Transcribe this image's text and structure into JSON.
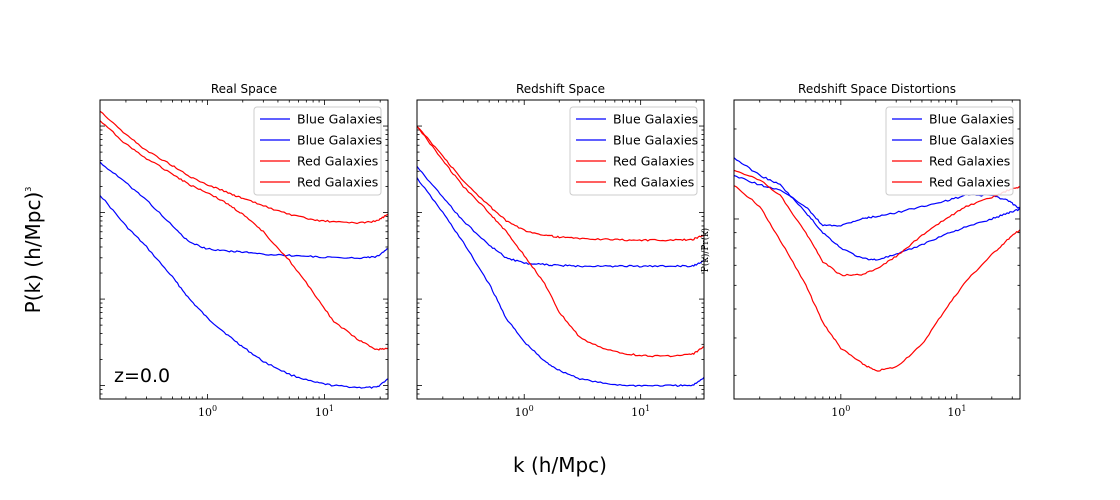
{
  "figure": {
    "ylabel_main": "P(k) (h/Mpc)",
    "ylabel_exp": "3",
    "xlabel": "k (h/Mpc)",
    "annotation": "z=0.0",
    "ratio_label": "P(k)/Pr(k)"
  },
  "colors": {
    "blue": "#0000ff",
    "red": "#ff0000"
  },
  "chart_data": [
    {
      "type": "line",
      "title": "Real Space",
      "xscale": "log",
      "yscale": "log",
      "xlim": [
        0.12,
        35
      ],
      "ylim": [
        0.7,
        2000
      ],
      "xticks": [
        {
          "base": "10",
          "exp": "0",
          "value": 1
        },
        {
          "base": "10",
          "exp": "1",
          "value": 10
        }
      ],
      "legend_position": "top-right",
      "series": [
        {
          "name": "Blue Galaxies",
          "color": "blue",
          "x": [
            0.12,
            0.2,
            0.3,
            0.5,
            0.7,
            1,
            1.5,
            2,
            3,
            5,
            8,
            12,
            20,
            28,
            35
          ],
          "y": [
            160,
            70,
            40,
            18,
            10,
            6,
            3.8,
            2.8,
            1.9,
            1.35,
            1.1,
            1.0,
            0.95,
            0.95,
            1.2
          ]
        },
        {
          "name": "Blue Galaxies",
          "color": "blue",
          "x": [
            0.12,
            0.2,
            0.3,
            0.5,
            0.7,
            1,
            1.5,
            2,
            3,
            5,
            8,
            12,
            20,
            28,
            35
          ],
          "y": [
            380,
            220,
            140,
            70,
            45,
            38,
            36,
            35,
            33,
            32,
            31,
            30,
            30,
            31,
            38
          ]
        },
        {
          "name": "Red Galaxies",
          "color": "red",
          "x": [
            0.12,
            0.2,
            0.3,
            0.5,
            0.7,
            1,
            1.5,
            2,
            3,
            5,
            8,
            12,
            20,
            28,
            35
          ],
          "y": [
            1150,
            620,
            420,
            280,
            210,
            170,
            125,
            95,
            60,
            28,
            12,
            5.5,
            3.3,
            2.6,
            2.7
          ]
        },
        {
          "name": "Red Galaxies",
          "color": "red",
          "x": [
            0.12,
            0.2,
            0.3,
            0.5,
            0.7,
            1,
            1.5,
            2,
            3,
            5,
            8,
            12,
            20,
            28,
            35
          ],
          "y": [
            1500,
            800,
            520,
            350,
            260,
            210,
            170,
            145,
            120,
            95,
            82,
            78,
            76,
            80,
            95
          ]
        }
      ]
    },
    {
      "type": "line",
      "title": "Redshift  Space",
      "xscale": "log",
      "yscale": "log",
      "xlim": [
        0.12,
        35
      ],
      "ylim": [
        0.7,
        2000
      ],
      "xticks": [
        {
          "base": "10",
          "exp": "0",
          "value": 1
        },
        {
          "base": "10",
          "exp": "1",
          "value": 10
        }
      ],
      "legend_position": "top-right",
      "series": [
        {
          "name": "Blue Galaxies",
          "color": "blue",
          "x": [
            0.12,
            0.2,
            0.3,
            0.5,
            0.7,
            1,
            1.5,
            2,
            3,
            5,
            8,
            12,
            20,
            28,
            35
          ],
          "y": [
            250,
            100,
            45,
            15,
            6,
            3.2,
            1.9,
            1.5,
            1.2,
            1.05,
            1.0,
            1.0,
            1.0,
            1.0,
            1.25
          ]
        },
        {
          "name": "Blue Galaxies",
          "color": "blue",
          "x": [
            0.12,
            0.2,
            0.3,
            0.5,
            0.7,
            1,
            1.5,
            2,
            3,
            5,
            8,
            12,
            20,
            28,
            35
          ],
          "y": [
            340,
            150,
            80,
            42,
            30,
            26,
            25,
            24.5,
            24,
            24,
            24,
            24,
            24,
            24,
            28
          ]
        },
        {
          "name": "Red Galaxies",
          "color": "red",
          "x": [
            0.12,
            0.2,
            0.3,
            0.5,
            0.7,
            1,
            1.5,
            2,
            3,
            5,
            8,
            12,
            20,
            28,
            35
          ],
          "y": [
            1000,
            400,
            200,
            100,
            60,
            32,
            15,
            7,
            3.6,
            2.6,
            2.3,
            2.2,
            2.2,
            2.3,
            2.8
          ]
        },
        {
          "name": "Red Galaxies",
          "color": "red",
          "x": [
            0.12,
            0.2,
            0.3,
            0.5,
            0.7,
            1,
            1.5,
            2,
            3,
            5,
            8,
            12,
            20,
            28,
            35
          ],
          "y": [
            1000,
            450,
            230,
            120,
            80,
            62,
            55,
            52,
            50,
            49,
            48,
            48,
            48,
            49,
            55
          ]
        }
      ]
    },
    {
      "type": "line",
      "title": "Redshift  Space Distortions",
      "xscale": "log",
      "yscale": "log",
      "xlim": [
        0.12,
        35
      ],
      "ylim": [
        0.25,
        2.5
      ],
      "xticks": [
        {
          "base": "10",
          "exp": "0",
          "value": 1
        },
        {
          "base": "10",
          "exp": "1",
          "value": 10
        }
      ],
      "legend_position": "top-right",
      "series": [
        {
          "name": "Blue Galaxies",
          "color": "blue",
          "x": [
            0.12,
            0.2,
            0.3,
            0.5,
            0.7,
            1,
            1.5,
            2,
            3,
            5,
            8,
            12,
            20,
            28,
            35
          ],
          "y": [
            1.6,
            1.4,
            1.3,
            1.05,
            0.9,
            0.8,
            0.74,
            0.73,
            0.76,
            0.82,
            0.89,
            0.94,
            1.0,
            1.05,
            1.08
          ]
        },
        {
          "name": "Blue Galaxies",
          "color": "blue",
          "x": [
            0.12,
            0.2,
            0.3,
            0.5,
            0.7,
            1,
            1.5,
            2,
            3,
            5,
            8,
            12,
            20,
            28,
            35
          ],
          "y": [
            1.4,
            1.3,
            1.25,
            1.1,
            0.95,
            0.95,
            1.0,
            1.02,
            1.05,
            1.1,
            1.15,
            1.2,
            1.2,
            1.15,
            1.08
          ]
        },
        {
          "name": "Red Galaxies",
          "color": "red",
          "x": [
            0.12,
            0.2,
            0.3,
            0.5,
            0.7,
            1,
            1.5,
            2,
            3,
            5,
            8,
            12,
            20,
            28,
            35
          ],
          "y": [
            1.3,
            1.1,
            0.85,
            0.6,
            0.45,
            0.37,
            0.33,
            0.31,
            0.32,
            0.38,
            0.5,
            0.62,
            0.76,
            0.86,
            0.92
          ]
        },
        {
          "name": "Red Galaxies",
          "color": "red",
          "x": [
            0.12,
            0.2,
            0.3,
            0.5,
            0.7,
            1,
            1.5,
            2,
            3,
            5,
            8,
            12,
            20,
            28,
            35
          ],
          "y": [
            1.45,
            1.35,
            1.2,
            0.9,
            0.72,
            0.65,
            0.65,
            0.68,
            0.75,
            0.88,
            1.0,
            1.1,
            1.18,
            1.25,
            1.28
          ]
        }
      ]
    }
  ]
}
